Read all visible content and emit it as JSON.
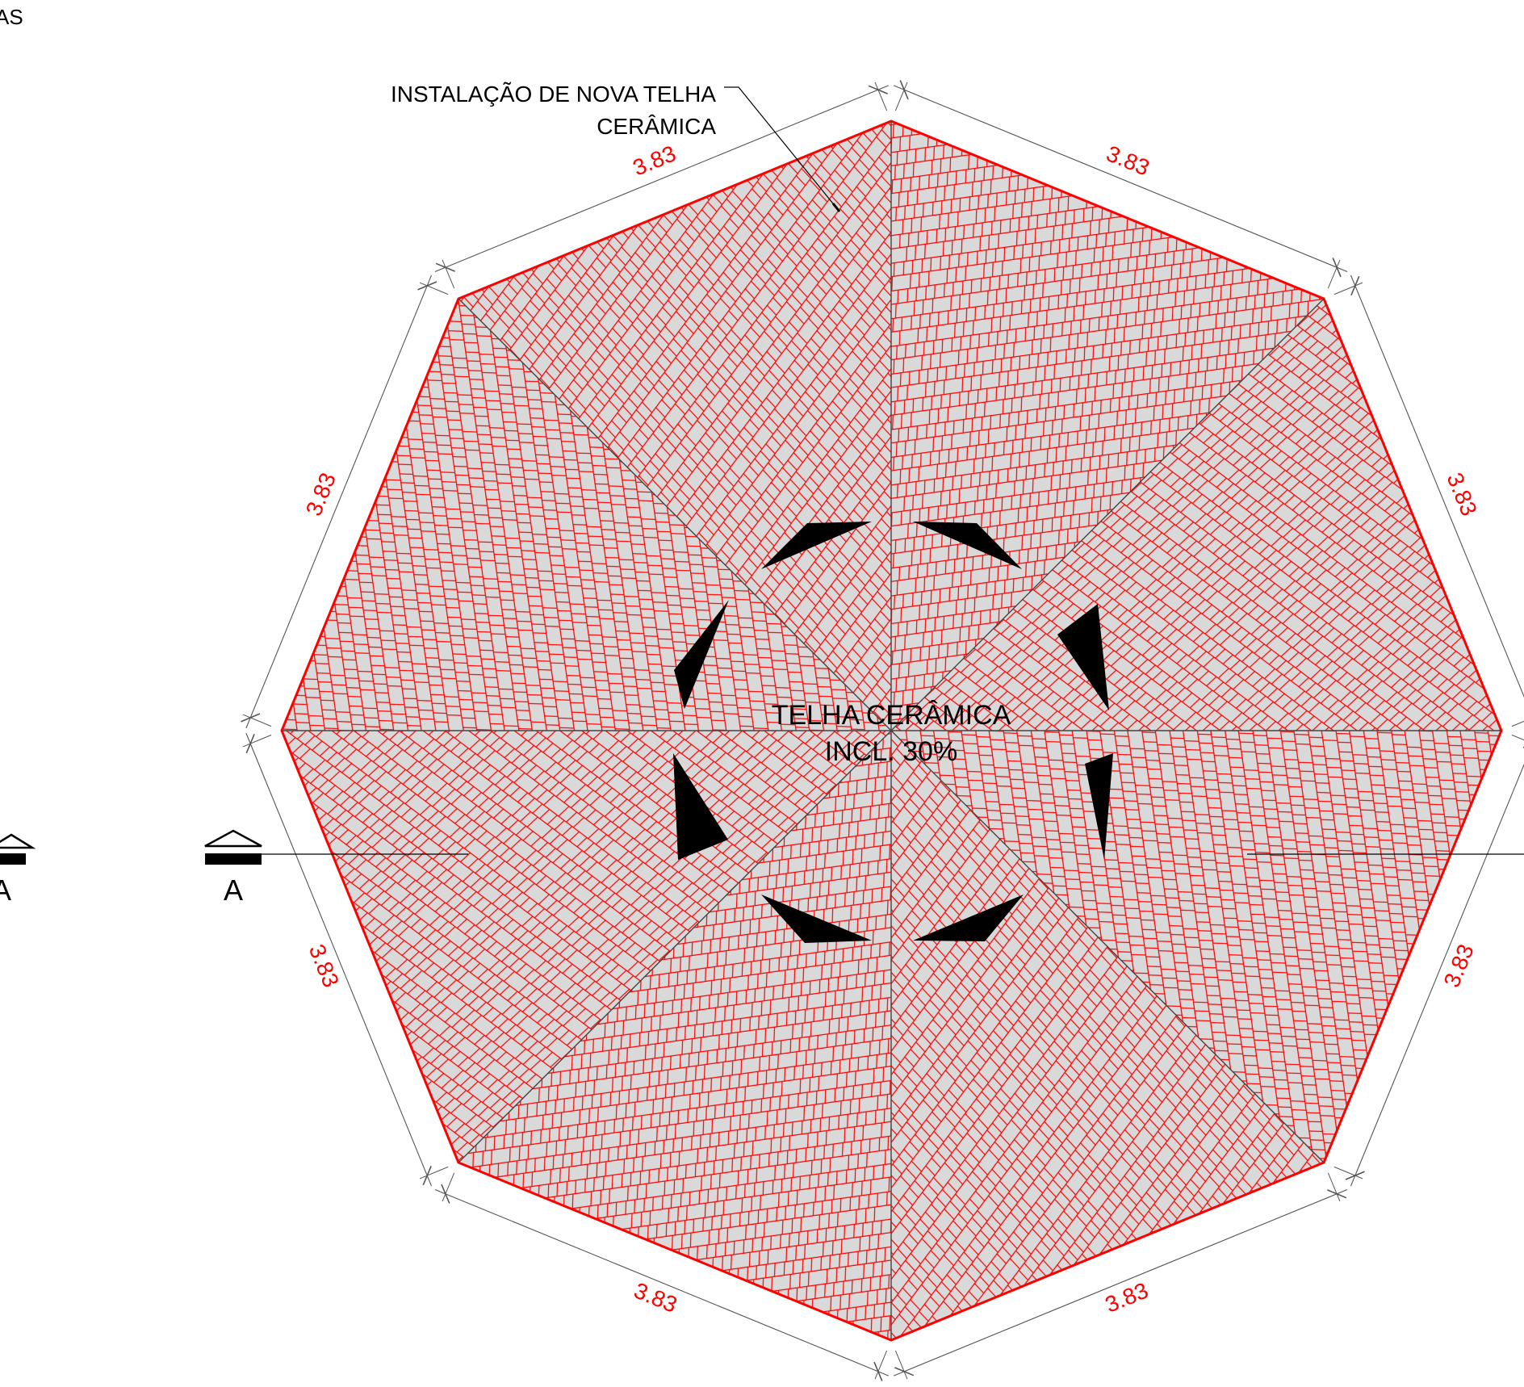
{
  "corner_fragment": "AS",
  "label_note": {
    "line1": "INSTALAÇÃO DE NOVA TELHA",
    "line2": "CERÂMICA"
  },
  "center_label": {
    "line1": "TELHA CERÂMICA",
    "line2": "INCL. 30%"
  },
  "dimension_value": "3.83",
  "section_marks": [
    {
      "letter": "A"
    },
    {
      "letter": "A"
    }
  ],
  "colors": {
    "tile_line": "#ff0000",
    "tile_fill": "#d9d9d9",
    "ink": "#000000",
    "dimension_line": "#555555",
    "dimension_text": "#ff0000"
  }
}
